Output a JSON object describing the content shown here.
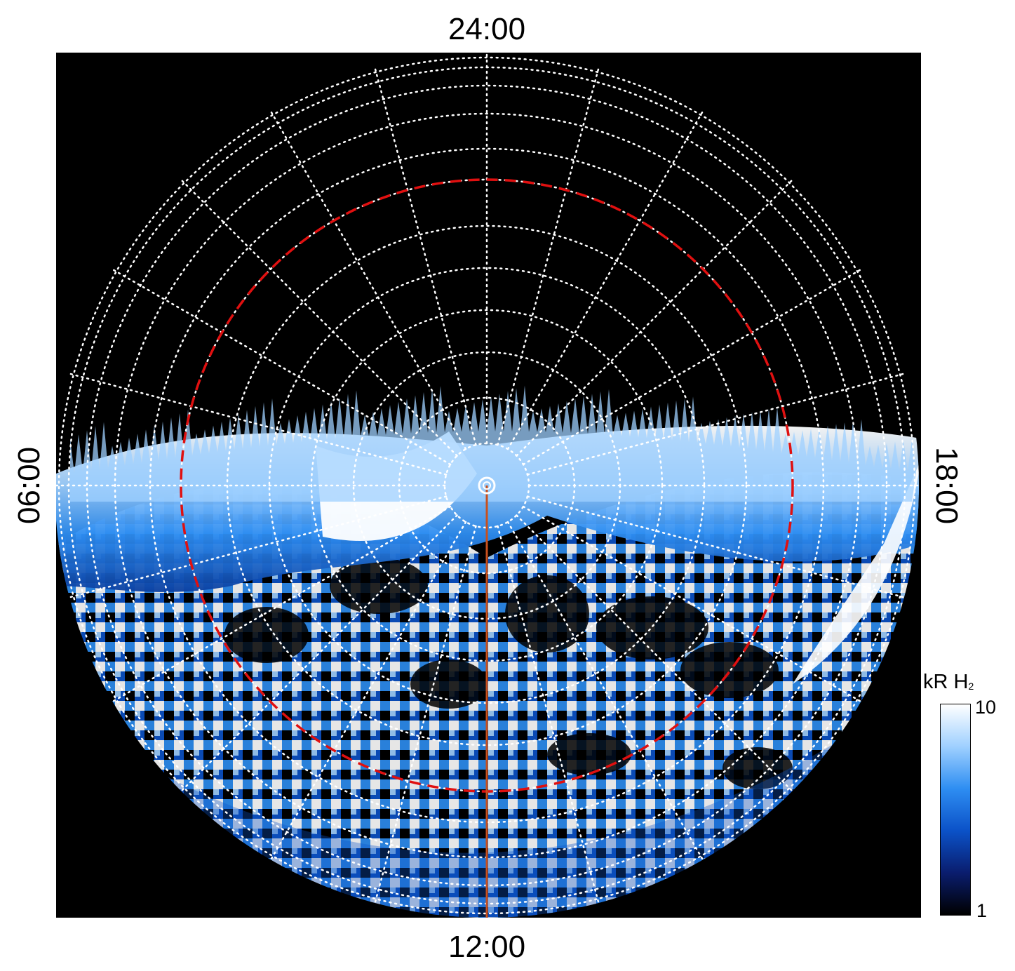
{
  "labels": {
    "top": "24:00",
    "bottom": "12:00",
    "left": "06:00",
    "right": "18:00"
  },
  "colorbar": {
    "title_main": "kR H",
    "title_sub": "2",
    "max_label": "10",
    "min_label": "1",
    "scale": "log",
    "colors": [
      "#000000",
      "#0a1d6e",
      "#0b52c8",
      "#2e8ef2",
      "#9fd0ff",
      "#ffffff"
    ]
  },
  "colors": {
    "background": "#000000",
    "grid": "#ffffff",
    "reference_circle": "#e01010",
    "meridian_line": "#c8501e"
  }
}
